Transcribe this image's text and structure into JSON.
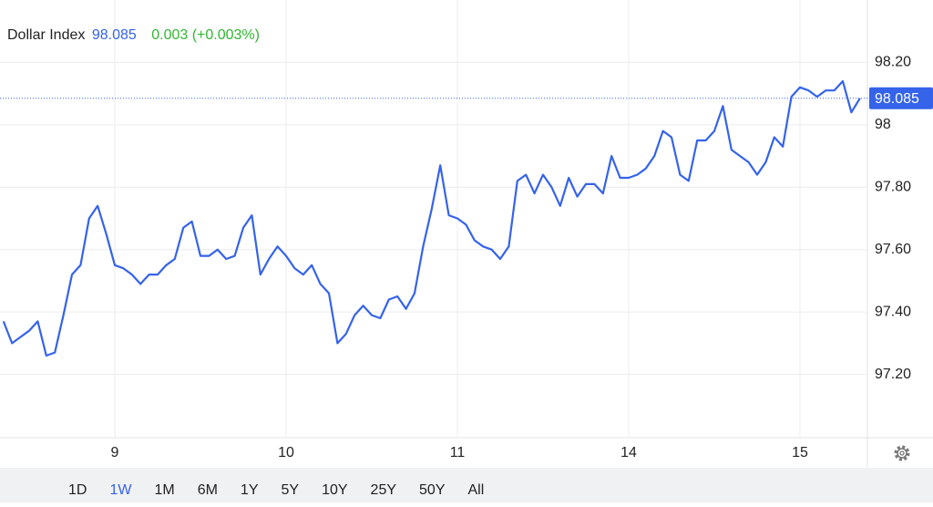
{
  "chart_data": {
    "type": "line",
    "series": [
      {
        "name": "Dollar Index",
        "color": "#3563e9",
        "values": [
          97.37,
          97.3,
          97.32,
          97.34,
          97.37,
          97.26,
          97.27,
          97.39,
          97.52,
          97.55,
          97.7,
          97.74,
          97.65,
          97.55,
          97.54,
          97.52,
          97.49,
          97.52,
          97.52,
          97.55,
          97.57,
          97.67,
          97.69,
          97.58,
          97.58,
          97.6,
          97.57,
          97.58,
          97.67,
          97.71,
          97.52,
          97.57,
          97.61,
          97.58,
          97.54,
          97.52,
          97.55,
          97.49,
          97.46,
          97.3,
          97.33,
          97.39,
          97.42,
          97.39,
          97.38,
          97.44,
          97.45,
          97.41,
          97.46,
          97.61,
          97.73,
          97.87,
          97.71,
          97.7,
          97.68,
          97.63,
          97.61,
          97.6,
          97.57,
          97.61,
          97.82,
          97.84,
          97.78,
          97.84,
          97.8,
          97.74,
          97.83,
          97.77,
          97.81,
          97.81,
          97.78,
          97.9,
          97.83,
          97.83,
          97.84,
          97.86,
          97.9,
          97.98,
          97.96,
          97.84,
          97.82,
          97.95,
          97.95,
          97.98,
          98.06,
          97.92,
          97.9,
          97.88,
          97.84,
          97.88,
          97.96,
          97.93,
          98.09,
          98.12,
          98.11,
          98.09,
          98.11,
          98.11,
          98.14,
          98.04,
          98.085
        ]
      }
    ],
    "xlim": [
      0,
      101
    ],
    "xticks": [
      {
        "value": 13,
        "label": "9"
      },
      {
        "value": 33,
        "label": "10"
      },
      {
        "value": 53,
        "label": "11"
      },
      {
        "value": 73,
        "label": "14"
      },
      {
        "value": 93,
        "label": "15"
      }
    ],
    "ylim": [
      97.0,
      98.4
    ],
    "yticks": [
      {
        "value": 97.2,
        "label": "97.20"
      },
      {
        "value": 97.4,
        "label": "97.40"
      },
      {
        "value": 97.6,
        "label": "97.60"
      },
      {
        "value": 97.8,
        "label": "97.80"
      },
      98,
      {
        "value": 98.2,
        "label": "98.20"
      }
    ],
    "grid": true
  },
  "quote": {
    "price": "98.085",
    "change": "0.003 (+0.003%)"
  },
  "range_selector": {
    "options": [
      "1D",
      "1W",
      "1M",
      "6M",
      "1Y",
      "5Y",
      "10Y",
      "25Y",
      "50Y",
      "All"
    ],
    "active_index": 1
  }
}
